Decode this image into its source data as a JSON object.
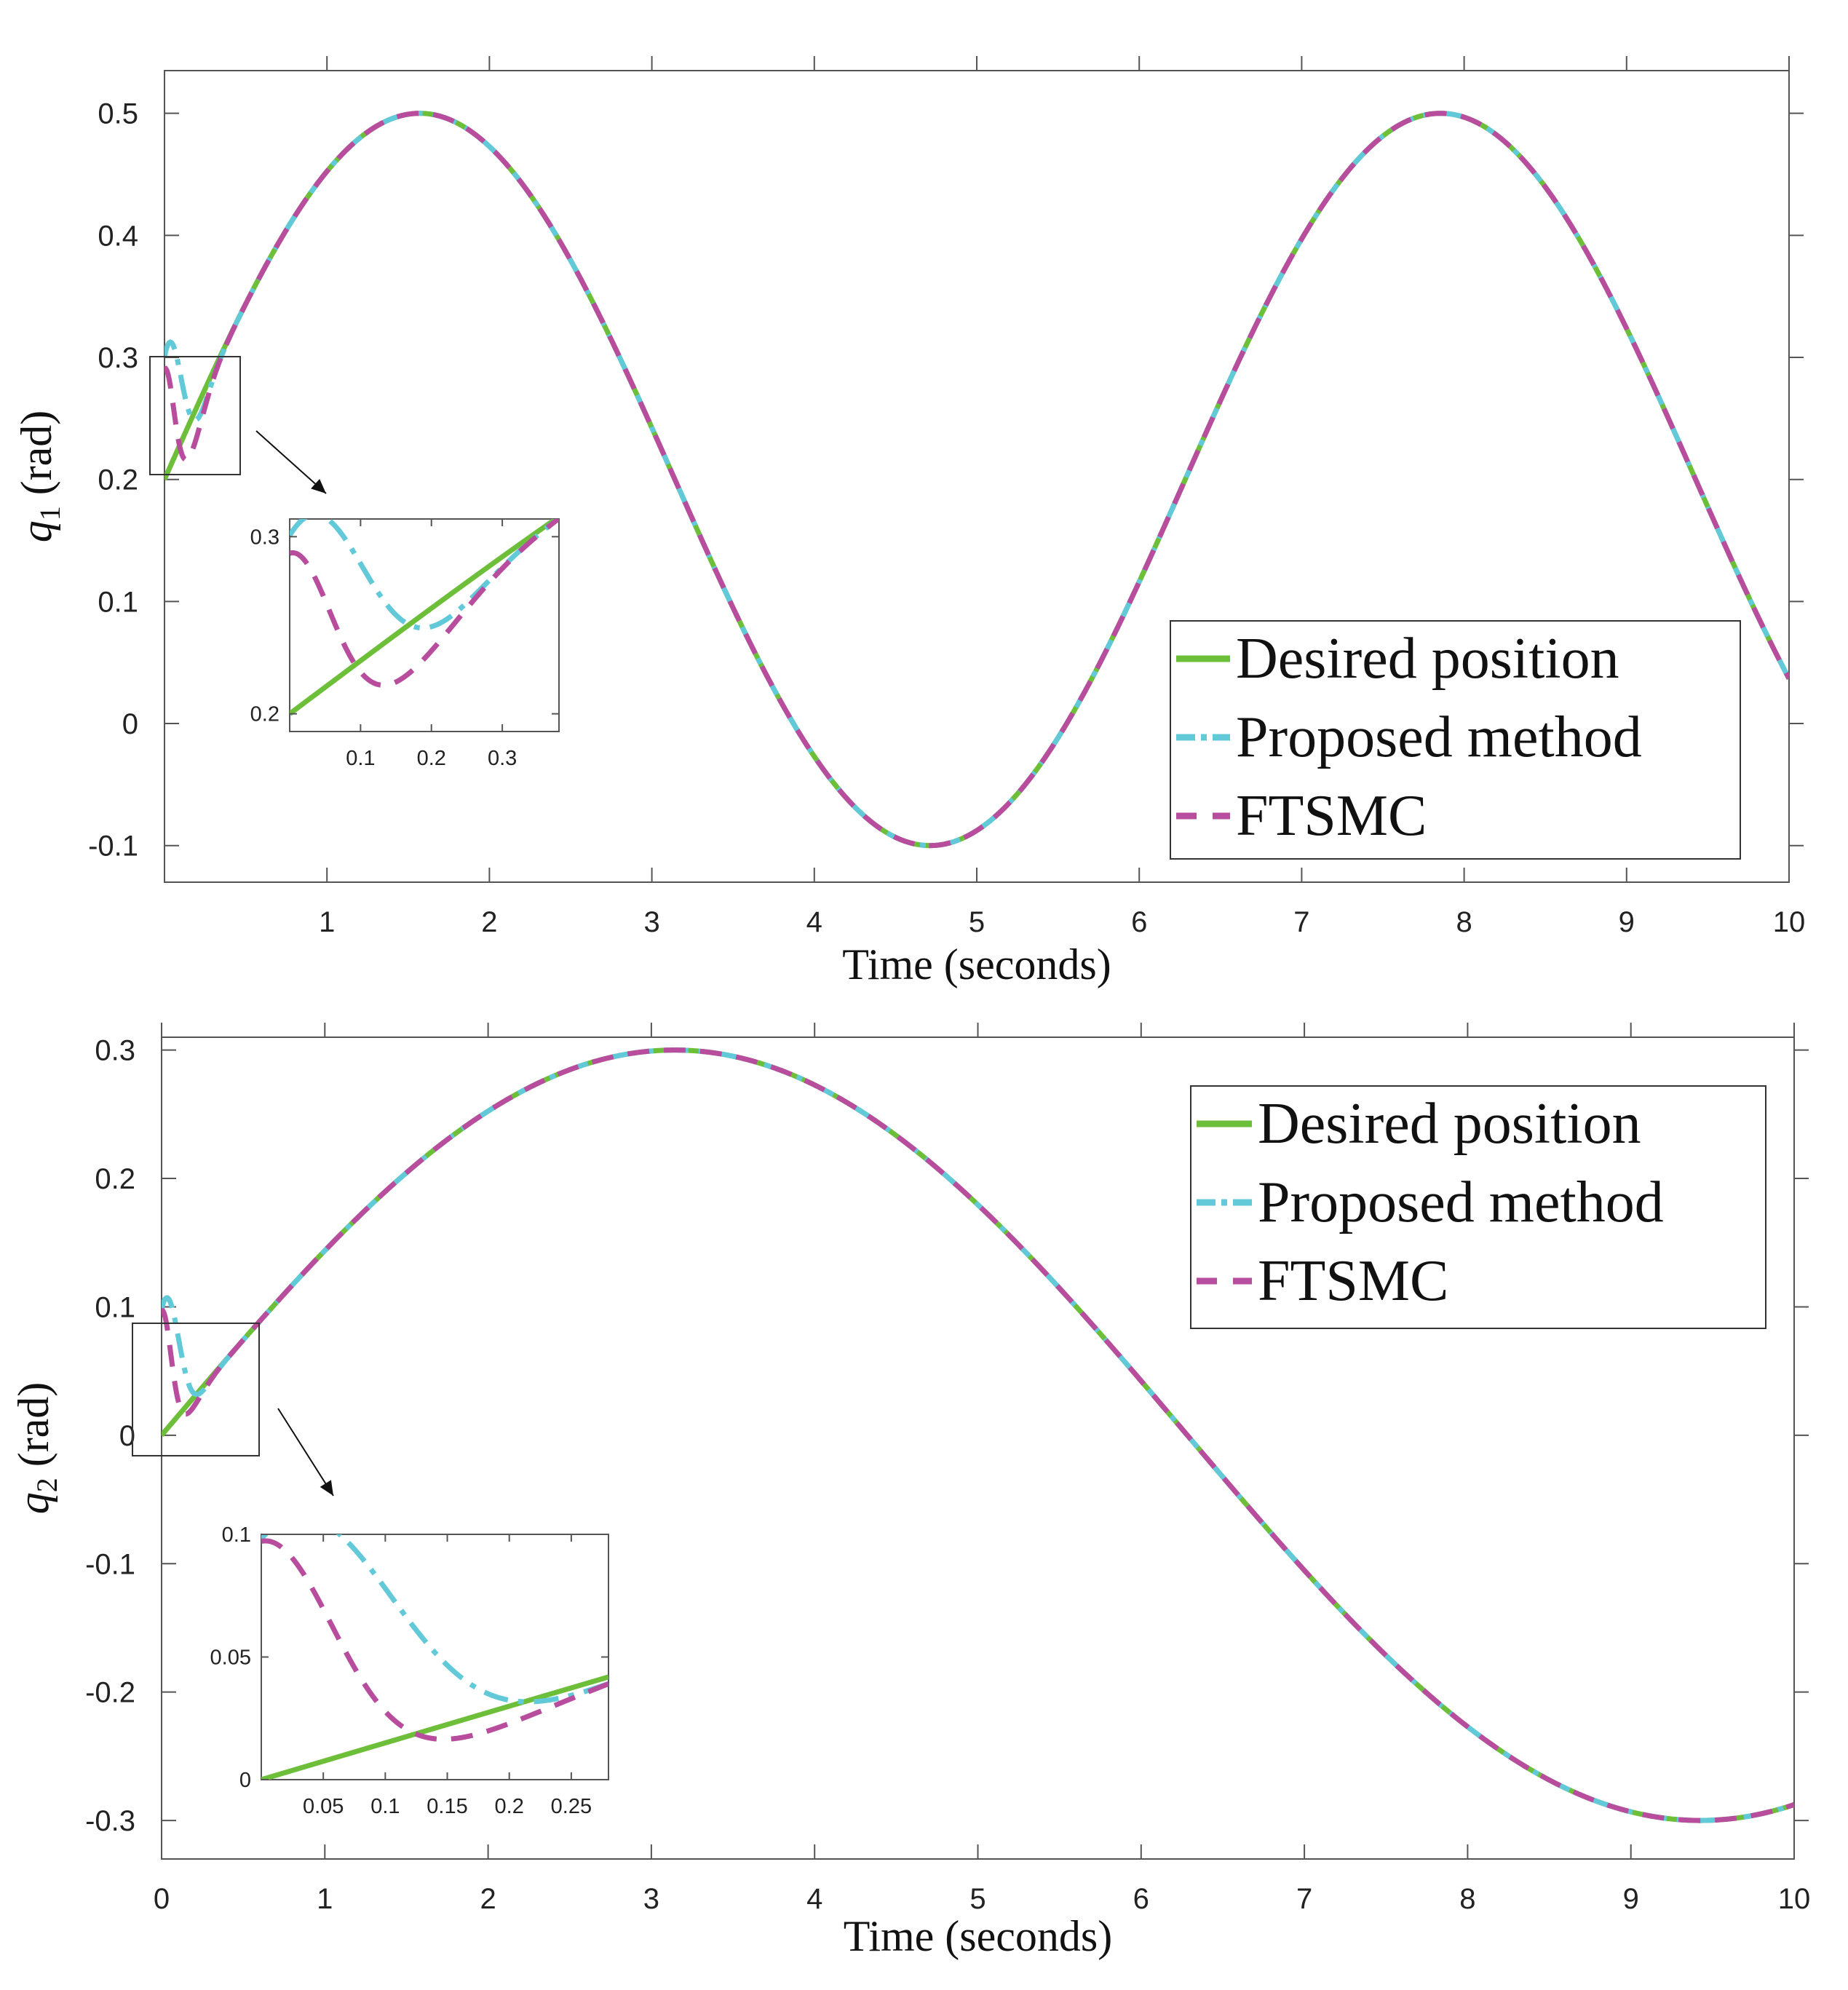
{
  "colors": {
    "desired": "#6dbf3a",
    "proposed": "#62c9d9",
    "ftsmc": "#b84d9e",
    "axis": "#555555"
  },
  "chart_data": [
    {
      "type": "line",
      "name": "q1",
      "xlabel": "Time (seconds)",
      "ylabel_symbol": "q",
      "ylabel_sub": "1",
      "ylabel_unit": "(rad)",
      "xlim": [
        0,
        10
      ],
      "ylim": [
        -0.13,
        0.535
      ],
      "xticks": [
        1,
        2,
        3,
        4,
        5,
        6,
        7,
        8,
        9,
        10
      ],
      "xtick_labels": [
        "1",
        "2",
        "3",
        "4",
        "5",
        "6",
        "7",
        "8",
        "9",
        "10"
      ],
      "yticks": [
        -0.1,
        0,
        0.1,
        0.2,
        0.3,
        0.4,
        0.5
      ],
      "ytick_labels": [
        "-0.1",
        "0",
        "0.1",
        "0.2",
        "0.3",
        "0.4",
        "0.5"
      ],
      "signal": {
        "offset": 0.2,
        "amplitude": 0.3,
        "omega": 1.0
      },
      "series": [
        {
          "name": "Desired position",
          "style": "solid",
          "start_value": 0.2
        },
        {
          "name": "Proposed method",
          "style": "dashdot",
          "start_value": 0.305,
          "settle_time": 0.35
        },
        {
          "name": "FTSMC",
          "style": "dashed",
          "start_value": 0.3,
          "settle_time": 0.38
        }
      ],
      "legend": {
        "position": "right",
        "entries": [
          "Desired position",
          "Proposed method",
          "FTSMC"
        ]
      },
      "zoom_region": {
        "x": [
          0,
          0.45
        ],
        "y": [
          0.2,
          0.3
        ]
      },
      "inset": {
        "xlim": [
          0.0,
          0.38
        ],
        "ylim": [
          0.19,
          0.31
        ],
        "xticks": [
          0.1,
          0.2,
          0.3
        ],
        "xtick_labels": [
          "0.1",
          "0.2",
          "0.3"
        ],
        "yticks": [
          0.2,
          0.3
        ],
        "ytick_labels": [
          "0.2",
          "0.3"
        ]
      }
    },
    {
      "type": "line",
      "name": "q2",
      "xlabel": "Time (seconds)",
      "ylabel_symbol": "q",
      "ylabel_sub": "2",
      "ylabel_unit": "(rad)",
      "xlim": [
        0,
        10
      ],
      "ylim": [
        -0.33,
        0.31
      ],
      "xticks": [
        0,
        1,
        2,
        3,
        4,
        5,
        6,
        7,
        8,
        9,
        10
      ],
      "xtick_labels": [
        "0",
        "1",
        "2",
        "3",
        "4",
        "5",
        "6",
        "7",
        "8",
        "9",
        "10"
      ],
      "yticks": [
        -0.3,
        -0.2,
        -0.1,
        0,
        0.1,
        0.2,
        0.3
      ],
      "ytick_labels": [
        "-0.3",
        "-0.2",
        "-0.1",
        "0",
        "0.1",
        "0.2",
        "0.3"
      ],
      "signal": {
        "offset": 0.0,
        "amplitude": 0.3,
        "omega": 0.5
      },
      "series": [
        {
          "name": "Desired position",
          "style": "solid",
          "start_value": 0.0
        },
        {
          "name": "Proposed method",
          "style": "dashdot",
          "start_value": 0.1,
          "settle_time": 0.3
        },
        {
          "name": "FTSMC",
          "style": "dashed",
          "start_value": 0.1,
          "settle_time": 0.35
        }
      ],
      "legend": {
        "position": "top-right",
        "entries": [
          "Desired position",
          "Proposed method",
          "FTSMC"
        ]
      },
      "zoom_region": {
        "x": [
          0,
          0.6
        ],
        "y": [
          0,
          0.1
        ]
      },
      "inset": {
        "xlim": [
          0.0,
          0.28
        ],
        "ylim": [
          0.0,
          0.1
        ],
        "xticks": [
          0.05,
          0.1,
          0.15,
          0.2,
          0.25
        ],
        "xtick_labels": [
          "0.05",
          "0.1",
          "0.15",
          "0.2",
          "0.25"
        ],
        "yticks": [
          0,
          0.05,
          0.1
        ],
        "ytick_labels": [
          "0",
          "0.05",
          "0.1"
        ]
      }
    }
  ]
}
